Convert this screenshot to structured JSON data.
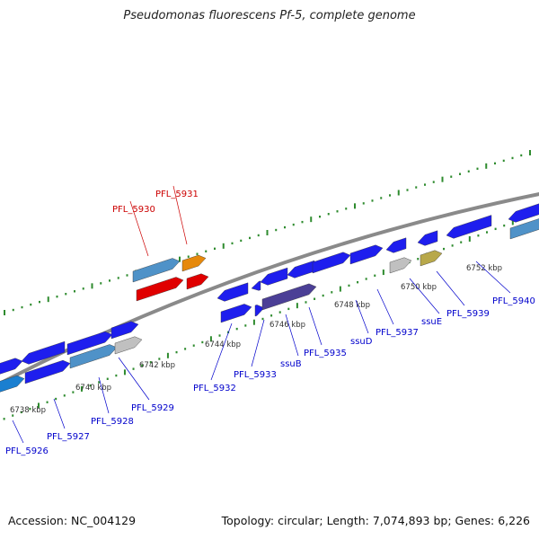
{
  "title": "Pseudomonas fluorescens Pf-5, complete genome",
  "footer": {
    "accession": "Accession: NC_004129",
    "summary": "Topology: circular; Length: 7,074,893 bp; Genes: 6,226"
  },
  "colors": {
    "backbone": "#8a8a8a",
    "tick": "#2e8b2e",
    "label_default": "#0000cc",
    "label_highlight": "#cc0000"
  },
  "scale_ticks": [
    "6738 kbp",
    "6740 kbp",
    "6742 kbp",
    "6744 kbp",
    "6746 kbp",
    "6748 kbp",
    "6750 kbp",
    "6752 kbp"
  ],
  "genes": [
    {
      "name": "PFL_5926",
      "color": "#1a7fd0"
    },
    {
      "name": "PFL_5927",
      "color": "#1e1eee"
    },
    {
      "name": "PFL_5928",
      "color": "#4f92c8"
    },
    {
      "name": "PFL_5929",
      "color": "#c0c0c0"
    },
    {
      "name": "PFL_5930",
      "color": "#e00000",
      "highlight": true
    },
    {
      "name": "PFL_5931",
      "color": "#e6890c",
      "highlight": true
    },
    {
      "name": "PFL_5932",
      "color": "#1e1eee"
    },
    {
      "name": "PFL_5933",
      "color": "#1e1eee"
    },
    {
      "name": "ssuB",
      "color": "#4b3f96"
    },
    {
      "name": "PFL_5935",
      "color": "#1e1eee"
    },
    {
      "name": "ssuD",
      "color": "#1e1eee"
    },
    {
      "name": "PFL_5937",
      "color": "#1e1eee"
    },
    {
      "name": "ssuE",
      "color": "#c0c0c0"
    },
    {
      "name": "PFL_5939",
      "color": "#b8a84a"
    },
    {
      "name": "PFL_5940",
      "color": "#1e1eee"
    }
  ]
}
